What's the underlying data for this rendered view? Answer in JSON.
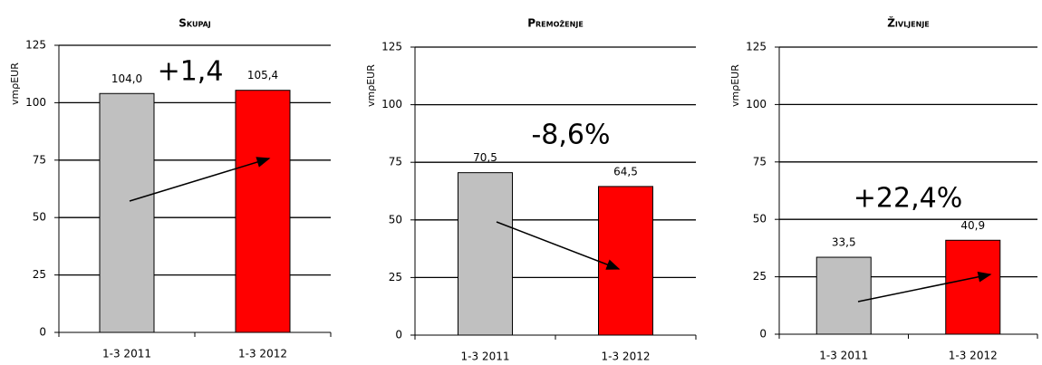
{
  "chart_data": [
    {
      "type": "bar",
      "title": "Skupaj",
      "y_label": "vmρEUR",
      "annotation": "+1,4",
      "categories": [
        "1-3 2011",
        "1-3 2012"
      ],
      "values": [
        104.0,
        105.4
      ],
      "value_labels": [
        "104,0",
        "105,4"
      ],
      "colors": [
        "#c0c0c0",
        "#ff0000"
      ],
      "ylim": [
        0,
        125
      ],
      "yticks": [
        0,
        25,
        50,
        75,
        100,
        125
      ],
      "grid": true
    },
    {
      "type": "bar",
      "title": "Premoženje",
      "y_label": "vmρEUR",
      "annotation": "-8,6%",
      "categories": [
        "1-3 2011",
        "1-3 2012"
      ],
      "values": [
        70.5,
        64.5
      ],
      "value_labels": [
        "70,5",
        "64,5"
      ],
      "colors": [
        "#c0c0c0",
        "#ff0000"
      ],
      "ylim": [
        0,
        125
      ],
      "yticks": [
        0,
        25,
        50,
        75,
        100,
        125
      ],
      "grid": true
    },
    {
      "type": "bar",
      "title": "Življenje",
      "y_label": "vmρEUR",
      "annotation": "+22,4%",
      "categories": [
        "1-3 2011",
        "1-3 2012"
      ],
      "values": [
        33.5,
        40.9
      ],
      "value_labels": [
        "33,5",
        "40,9"
      ],
      "colors": [
        "#c0c0c0",
        "#ff0000"
      ],
      "ylim": [
        0,
        125
      ],
      "yticks": [
        0,
        25,
        50,
        75,
        100,
        125
      ],
      "grid": true
    }
  ]
}
